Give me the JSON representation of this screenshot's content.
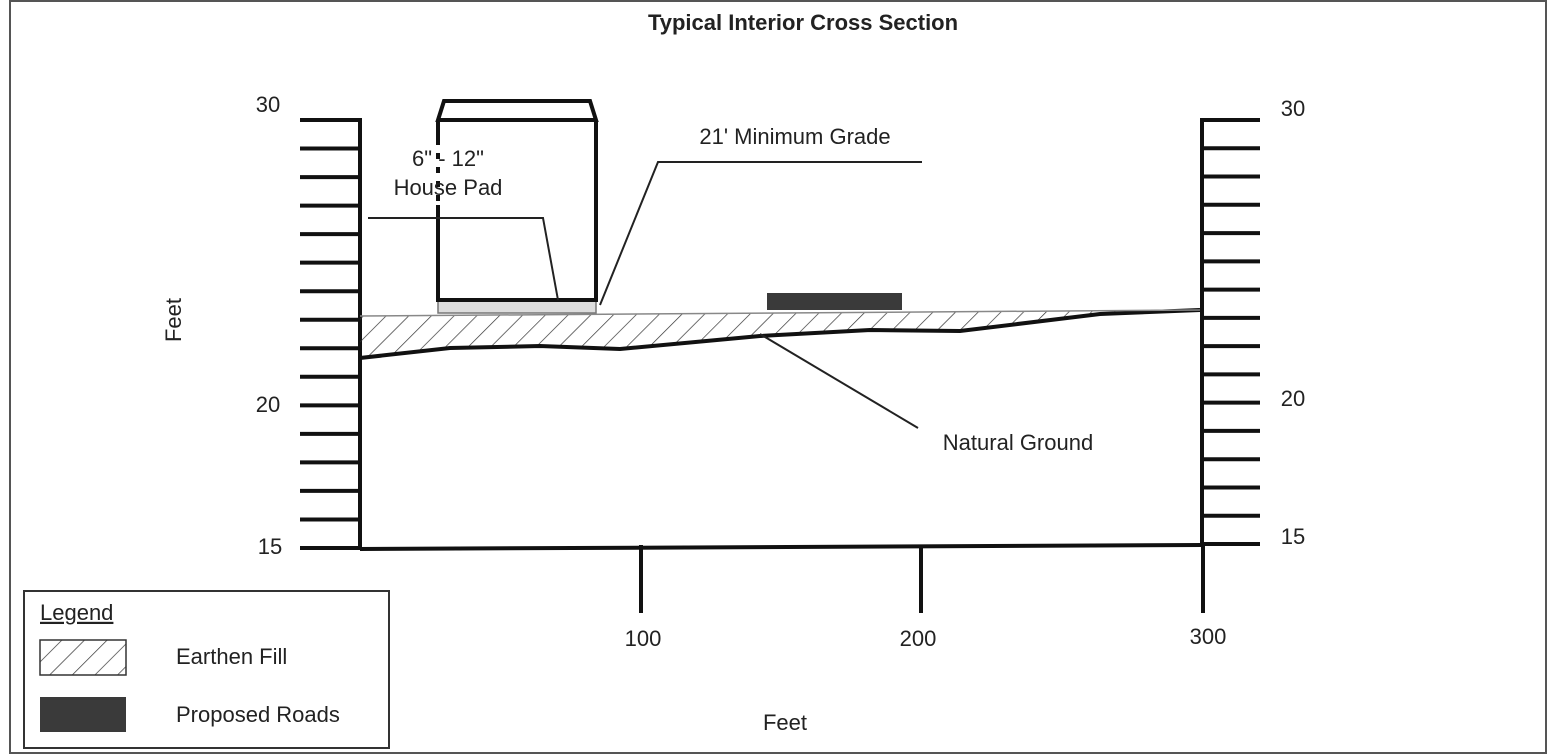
{
  "title": "Typical Interior Cross Section",
  "left_axis": {
    "label": "Feet",
    "ticks": [
      "30",
      "20",
      "15"
    ]
  },
  "right_axis": {
    "ticks": [
      "30",
      "20",
      "15"
    ]
  },
  "bottom_axis": {
    "label": "Feet",
    "ticks": [
      "100",
      "200",
      "300"
    ]
  },
  "annotations": {
    "grade": "21' Minimum Grade",
    "pad_height": "6\" - 12\"",
    "pad": "House Pad",
    "ground": "Natural Ground"
  },
  "legend": {
    "title": "Legend",
    "items": [
      "Earthen Fill",
      "Proposed Roads"
    ]
  }
}
